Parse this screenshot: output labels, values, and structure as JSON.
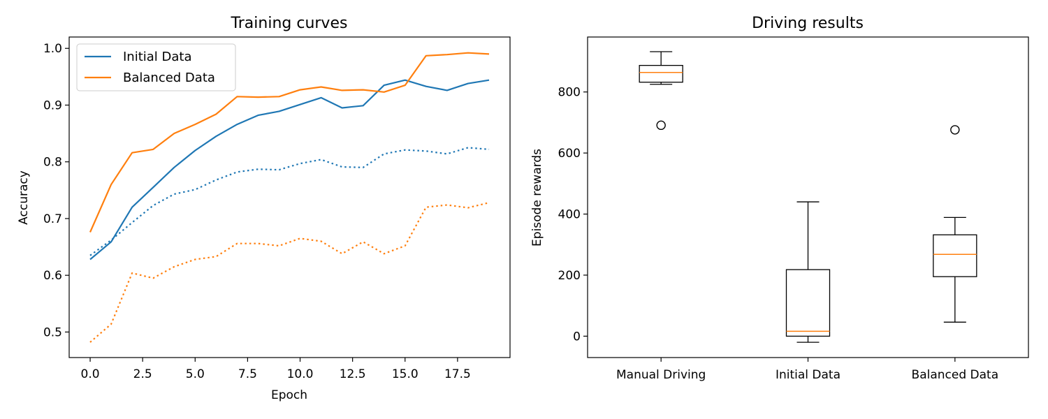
{
  "chart_data": [
    {
      "type": "line",
      "title": "Training curves",
      "xlabel": "Epoch",
      "ylabel": "Accuracy",
      "xlim": [
        -1.0,
        20.0
      ],
      "ylim": [
        0.455,
        1.02
      ],
      "xticks": [
        0.0,
        2.5,
        5.0,
        7.5,
        10.0,
        12.5,
        15.0,
        17.5
      ],
      "xtick_labels": [
        "0.0",
        "2.5",
        "5.0",
        "7.5",
        "10.0",
        "12.5",
        "15.0",
        "17.5"
      ],
      "yticks": [
        0.5,
        0.6,
        0.7,
        0.8,
        0.9,
        1.0
      ],
      "ytick_labels": [
        "0.5",
        "0.6",
        "0.7",
        "0.8",
        "0.9",
        "1.0"
      ],
      "grid": false,
      "legend": {
        "position": "top-left",
        "entries": [
          "Initial Data",
          "Balanced Data"
        ]
      },
      "x": [
        0,
        1,
        2,
        3,
        4,
        5,
        6,
        7,
        8,
        9,
        10,
        11,
        12,
        13,
        14,
        15,
        16,
        17,
        18,
        19
      ],
      "series": [
        {
          "name": "Initial Data",
          "color": "#1f77b4",
          "style": "solid",
          "values": [
            0.628,
            0.659,
            0.72,
            0.755,
            0.79,
            0.82,
            0.845,
            0.866,
            0.882,
            0.889,
            0.901,
            0.913,
            0.895,
            0.899,
            0.935,
            0.944,
            0.933,
            0.926,
            0.938,
            0.944
          ]
        },
        {
          "name": "Balanced Data",
          "color": "#ff7f0e",
          "style": "solid",
          "values": [
            0.676,
            0.76,
            0.816,
            0.822,
            0.85,
            0.866,
            0.884,
            0.915,
            0.914,
            0.915,
            0.927,
            0.932,
            0.926,
            0.927,
            0.923,
            0.935,
            0.987,
            0.989,
            0.992,
            0.99
          ]
        },
        {
          "color": "#1f77b4",
          "style": "dotted",
          "values": [
            0.635,
            0.662,
            0.693,
            0.723,
            0.743,
            0.751,
            0.768,
            0.782,
            0.787,
            0.786,
            0.797,
            0.804,
            0.791,
            0.79,
            0.814,
            0.821,
            0.819,
            0.814,
            0.825,
            0.822
          ]
        },
        {
          "color": "#ff7f0e",
          "style": "dotted",
          "values": [
            0.482,
            0.514,
            0.604,
            0.595,
            0.615,
            0.628,
            0.633,
            0.656,
            0.656,
            0.652,
            0.665,
            0.66,
            0.638,
            0.659,
            0.638,
            0.652,
            0.72,
            0.724,
            0.719,
            0.728
          ]
        }
      ]
    },
    {
      "type": "box",
      "title": "Driving results",
      "xlabel": "",
      "ylabel": "Episode rewards",
      "ylim": [
        -70,
        980
      ],
      "yticks": [
        0,
        200,
        400,
        600,
        800
      ],
      "ytick_labels": [
        "0",
        "200",
        "400",
        "600",
        "800"
      ],
      "grid": false,
      "categories": [
        "Manual Driving",
        "Initial Data",
        "Balanced Data"
      ],
      "median_color": "#ff7f0e",
      "boxes": [
        {
          "whisker_low": 825,
          "q1": 832,
          "median": 864,
          "q3": 887,
          "whisker_high": 932,
          "outliers": [
            691
          ]
        },
        {
          "whisker_low": -20,
          "q1": 0,
          "median": 16,
          "q3": 218,
          "whisker_high": 440,
          "outliers": []
        },
        {
          "whisker_low": 46,
          "q1": 195,
          "median": 268,
          "q3": 332,
          "whisker_high": 389,
          "outliers": [
            676
          ]
        }
      ]
    }
  ]
}
